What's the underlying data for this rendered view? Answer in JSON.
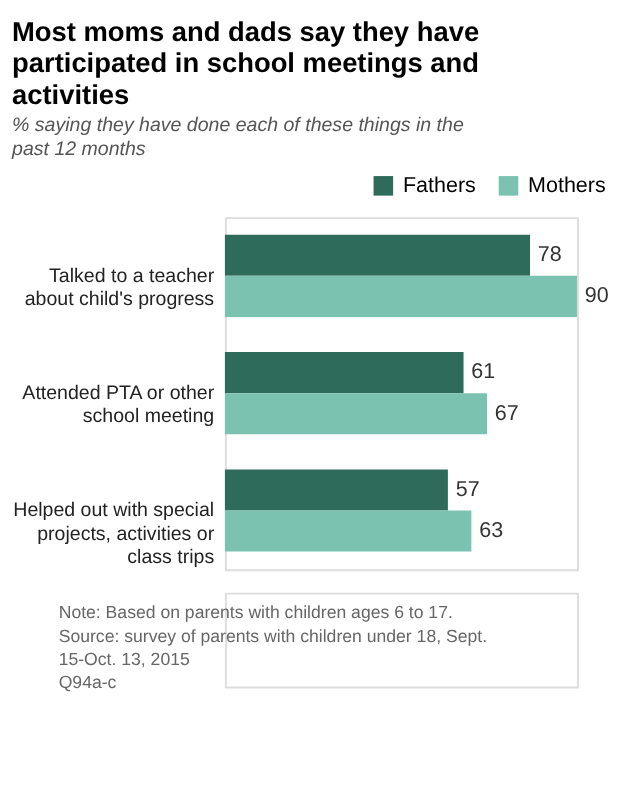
{
  "chart_data": {
    "type": "bar",
    "orientation": "horizontal",
    "title": "Most moms and dads say they have participated in school meetings and activities",
    "subtitle": "% saying they have done each of these things in the past 12 months",
    "categories": [
      "Talked to a teacher\nabout child's progress",
      "Attended PTA or other\nschool meeting",
      "Helped out with special\nprojects, activities or\nclass trips"
    ],
    "series": [
      {
        "name": "Fathers",
        "color": "#2e6b5a",
        "values": [
          78,
          61,
          57
        ]
      },
      {
        "name": "Mothers",
        "color": "#7cc2b0",
        "values": [
          90,
          67,
          63
        ]
      }
    ],
    "data_labels": true,
    "legend": "top",
    "grid": false,
    "tick_labels": "y",
    "annotations": [
      "Note: Based on parents with children ages 6 to 17.",
      "Source: survey of parents with children under 18, Sept. 15-Oct. 13, 2015",
      "Q94a-c"
    ]
  }
}
